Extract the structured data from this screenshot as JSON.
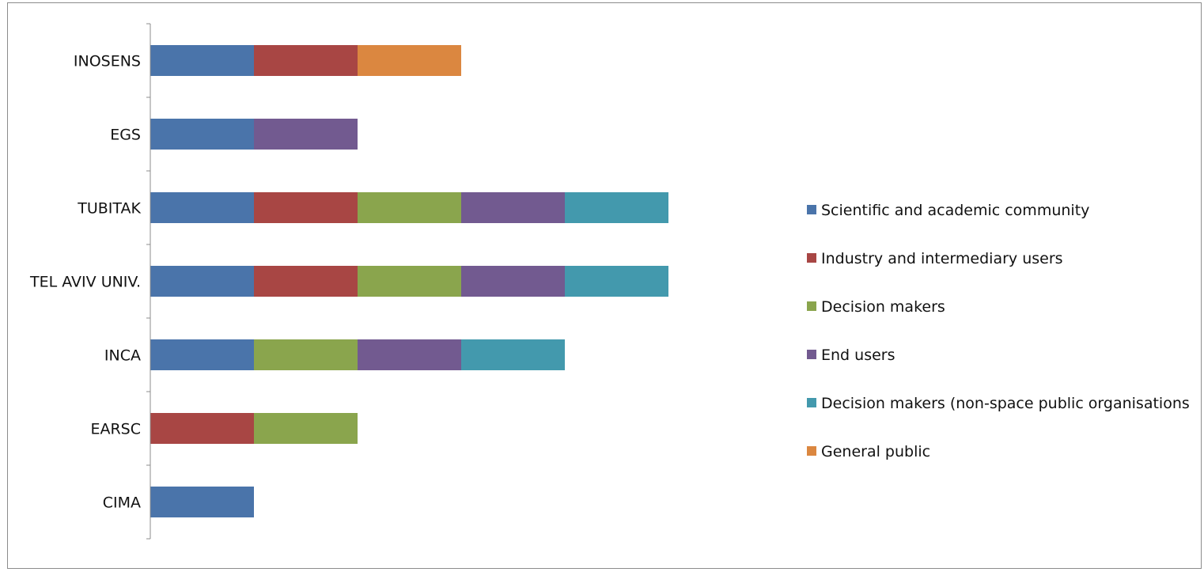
{
  "chart_data": {
    "type": "bar",
    "orientation": "horizontal",
    "stacked": true,
    "title": "",
    "xlabel": "",
    "ylabel": "",
    "categories": [
      "CIMA",
      "EARSC",
      "INCA",
      "TEL AVIV UNIV.",
      "TUBITAK",
      "EGS",
      "INOSENS"
    ],
    "series": [
      {
        "name": "Scientific and academic community",
        "color": "#4a74aa",
        "values": [
          1,
          0,
          1,
          1,
          1,
          1,
          1
        ]
      },
      {
        "name": "Industry and intermediary users",
        "color": "#a84644",
        "values": [
          0,
          1,
          0,
          1,
          1,
          0,
          1
        ]
      },
      {
        "name": "Decision makers",
        "color": "#8aa54d",
        "values": [
          0,
          1,
          1,
          1,
          1,
          0,
          0
        ]
      },
      {
        "name": "End users",
        "color": "#725a90",
        "values": [
          0,
          0,
          1,
          1,
          1,
          1,
          0
        ]
      },
      {
        "name": "Decision makers (non-space public organisations",
        "color": "#4399ad",
        "values": [
          0,
          0,
          1,
          1,
          1,
          0,
          0
        ]
      },
      {
        "name": "General public",
        "color": "#db8740",
        "values": [
          0,
          0,
          0,
          0,
          0,
          0,
          1
        ]
      }
    ],
    "xlim": [
      0,
      5
    ],
    "grid": false,
    "legend": "right"
  }
}
